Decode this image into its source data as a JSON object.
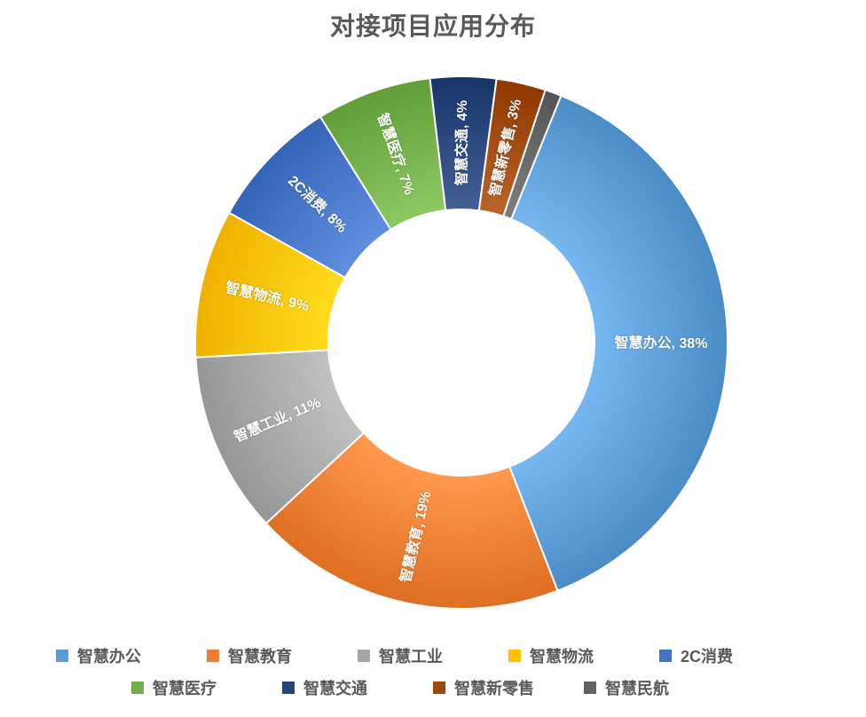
{
  "chart": {
    "type": "pie-donut",
    "title": "对接项目应用分布",
    "title_fontsize": 28,
    "title_color": "#595959",
    "background_color": "#ffffff",
    "donut": {
      "outer_radius": 300,
      "inner_radius": 150,
      "separator_color": "#ffffff",
      "separator_width": 2,
      "start_angle_deg": 22
    },
    "label_style": {
      "fontsize": 16,
      "color": "#ffffff",
      "weight": "bold",
      "orientation": "radial",
      "format": "{name}, {value}%"
    },
    "slices": [
      {
        "name": "智慧办公",
        "value": 38,
        "color": "#5b9bd5"
      },
      {
        "name": "智慧教育",
        "value": 19,
        "color": "#ed7d31"
      },
      {
        "name": "智慧工业",
        "value": 11,
        "color": "#a5a5a5"
      },
      {
        "name": "智慧物流",
        "value": 9,
        "color": "#ffc000"
      },
      {
        "name": "2C消费",
        "value": 8,
        "color": "#4472c4"
      },
      {
        "name": "智慧医疗",
        "value": 7,
        "color": "#70ad47"
      },
      {
        "name": "智慧交通",
        "value": 4,
        "color": "#264478"
      },
      {
        "name": "智慧新零售",
        "value": 3,
        "color": "#9e480e"
      },
      {
        "name": "智慧民航",
        "value": 1,
        "color": "#636363"
      }
    ],
    "legend": {
      "position": "bottom",
      "fontsize": 18,
      "color": "#595959",
      "swatch_size": 14,
      "item_width": 170,
      "items_per_row": 5
    }
  }
}
